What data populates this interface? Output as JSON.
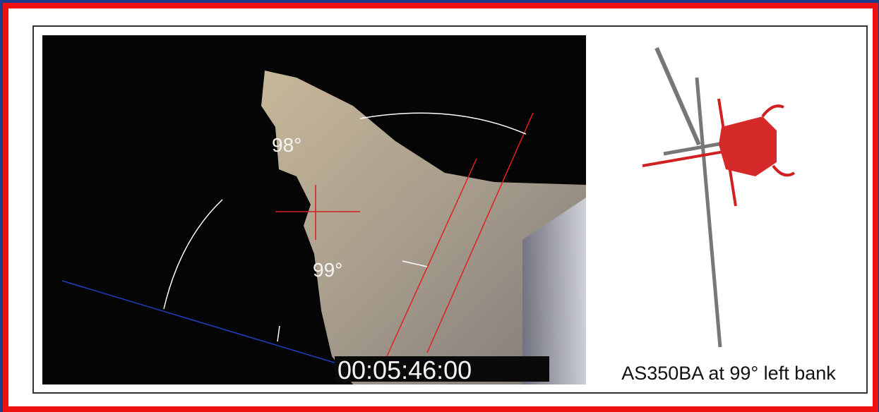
{
  "video": {
    "angle_label_top": "98°",
    "angle_label": "99°",
    "timecode": "00:05:46:00"
  },
  "caption": "AS350BA at 99° left bank"
}
